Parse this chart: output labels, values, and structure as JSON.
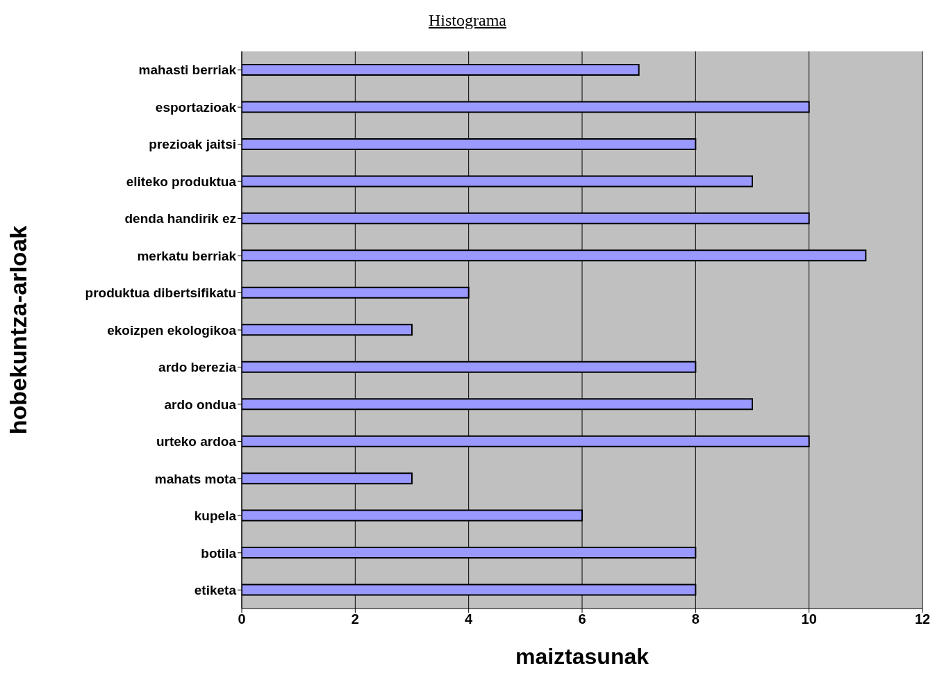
{
  "chart_data": {
    "type": "bar",
    "orientation": "horizontal",
    "title": "Histograma",
    "xlabel": "maiztasunak",
    "ylabel": "hobekuntza-arloak",
    "categories": [
      "mahasti berriak",
      "esportazioak",
      "prezioak jaitsi",
      "eliteko produktua",
      "denda handirik ez",
      "merkatu berriak",
      "produktua dibertsifikatu",
      "ekoizpen ekologikoa",
      "ardo berezia",
      "ardo ondua",
      "urteko ardoa",
      "mahats mota",
      "kupela",
      "botila",
      "etiketa"
    ],
    "values": [
      7,
      10,
      8,
      9,
      10,
      11,
      4,
      3,
      8,
      9,
      10,
      3,
      6,
      8,
      8
    ],
    "color": "#9999ff",
    "xlim": [
      0,
      12
    ],
    "xticks": [
      0,
      2,
      4,
      6,
      8,
      10,
      12
    ],
    "grid": "x",
    "legend": false
  }
}
